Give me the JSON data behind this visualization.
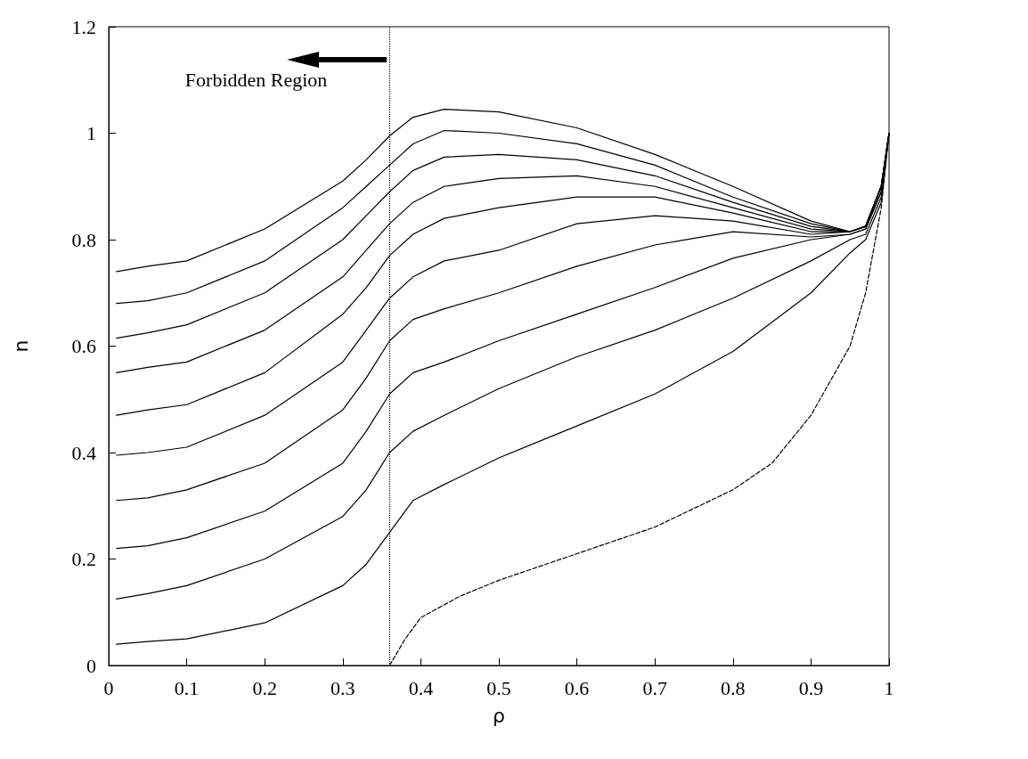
{
  "chart_data": {
    "type": "line",
    "xlabel": "ρ",
    "ylabel": "n",
    "x": [
      0.01,
      0.05,
      0.1,
      0.2,
      0.3,
      0.33,
      0.36,
      0.39,
      0.43,
      0.5,
      0.6,
      0.7,
      0.8,
      0.9,
      0.95,
      0.97,
      0.99,
      1.0
    ],
    "series": [
      {
        "color": "#000000",
        "values": [
          0.74,
          0.75,
          0.76,
          0.82,
          0.91,
          0.95,
          0.995,
          1.03,
          1.045,
          1.04,
          1.01,
          0.96,
          0.9,
          0.835,
          0.815,
          0.825,
          0.9,
          1.0
        ]
      },
      {
        "color": "#000000",
        "values": [
          0.68,
          0.685,
          0.7,
          0.76,
          0.86,
          0.9,
          0.94,
          0.98,
          1.005,
          1.0,
          0.98,
          0.94,
          0.88,
          0.83,
          0.815,
          0.825,
          0.9,
          1.0
        ]
      },
      {
        "color": "#000000",
        "values": [
          0.615,
          0.625,
          0.64,
          0.7,
          0.8,
          0.845,
          0.89,
          0.93,
          0.955,
          0.96,
          0.95,
          0.92,
          0.87,
          0.825,
          0.815,
          0.825,
          0.9,
          1.0
        ]
      },
      {
        "color": "#000000",
        "values": [
          0.55,
          0.56,
          0.57,
          0.63,
          0.73,
          0.78,
          0.83,
          0.87,
          0.9,
          0.915,
          0.92,
          0.9,
          0.86,
          0.82,
          0.815,
          0.825,
          0.9,
          1.0
        ]
      },
      {
        "color": "#000000",
        "values": [
          0.47,
          0.48,
          0.49,
          0.55,
          0.66,
          0.71,
          0.77,
          0.81,
          0.84,
          0.86,
          0.88,
          0.88,
          0.85,
          0.815,
          0.815,
          0.825,
          0.9,
          1.0
        ]
      },
      {
        "color": "#000000",
        "values": [
          0.395,
          0.4,
          0.41,
          0.47,
          0.57,
          0.63,
          0.69,
          0.73,
          0.76,
          0.78,
          0.83,
          0.845,
          0.835,
          0.81,
          0.815,
          0.825,
          0.9,
          1.0
        ]
      },
      {
        "color": "#000000",
        "values": [
          0.31,
          0.315,
          0.33,
          0.38,
          0.48,
          0.54,
          0.61,
          0.65,
          0.67,
          0.7,
          0.75,
          0.79,
          0.815,
          0.805,
          0.81,
          0.82,
          0.89,
          1.0
        ]
      },
      {
        "color": "#000000",
        "values": [
          0.22,
          0.225,
          0.24,
          0.29,
          0.38,
          0.44,
          0.51,
          0.55,
          0.57,
          0.61,
          0.66,
          0.71,
          0.765,
          0.8,
          0.81,
          0.82,
          0.89,
          1.0
        ]
      },
      {
        "color": "#000000",
        "values": [
          0.125,
          0.135,
          0.15,
          0.2,
          0.28,
          0.33,
          0.4,
          0.44,
          0.47,
          0.52,
          0.58,
          0.63,
          0.69,
          0.76,
          0.8,
          0.81,
          0.88,
          1.0
        ]
      },
      {
        "color": "#000000",
        "values": [
          0.04,
          0.045,
          0.05,
          0.08,
          0.15,
          0.19,
          0.25,
          0.31,
          0.34,
          0.39,
          0.45,
          0.51,
          0.59,
          0.7,
          0.775,
          0.8,
          0.87,
          1.0
        ]
      },
      {
        "color": "#000000",
        "line_style": "dashed",
        "x": [
          0.36,
          0.38,
          0.4,
          0.45,
          0.5,
          0.6,
          0.7,
          0.8,
          0.85,
          0.9,
          0.95,
          0.97,
          0.99,
          1.0
        ],
        "values": [
          0,
          0.05,
          0.09,
          0.13,
          0.16,
          0.21,
          0.26,
          0.33,
          0.38,
          0.47,
          0.6,
          0.7,
          0.86,
          1.0
        ]
      }
    ],
    "xlim": [
      0,
      1
    ],
    "xticks": [
      0,
      0.1,
      0.2,
      0.3,
      0.4,
      0.5,
      0.6,
      0.7,
      0.8,
      0.9,
      1
    ],
    "ylim": [
      0,
      1.2
    ],
    "yticks": [
      0,
      0.2,
      0.4,
      0.6,
      0.8,
      1,
      1.2
    ],
    "ref_lines": [
      {
        "axis": "x",
        "value": 0.36,
        "line_style": "dotted",
        "color": "#000000"
      }
    ],
    "annotations": [
      "Forbidden Region"
    ],
    "marker": "none",
    "line_style": "solid",
    "grid": false
  }
}
